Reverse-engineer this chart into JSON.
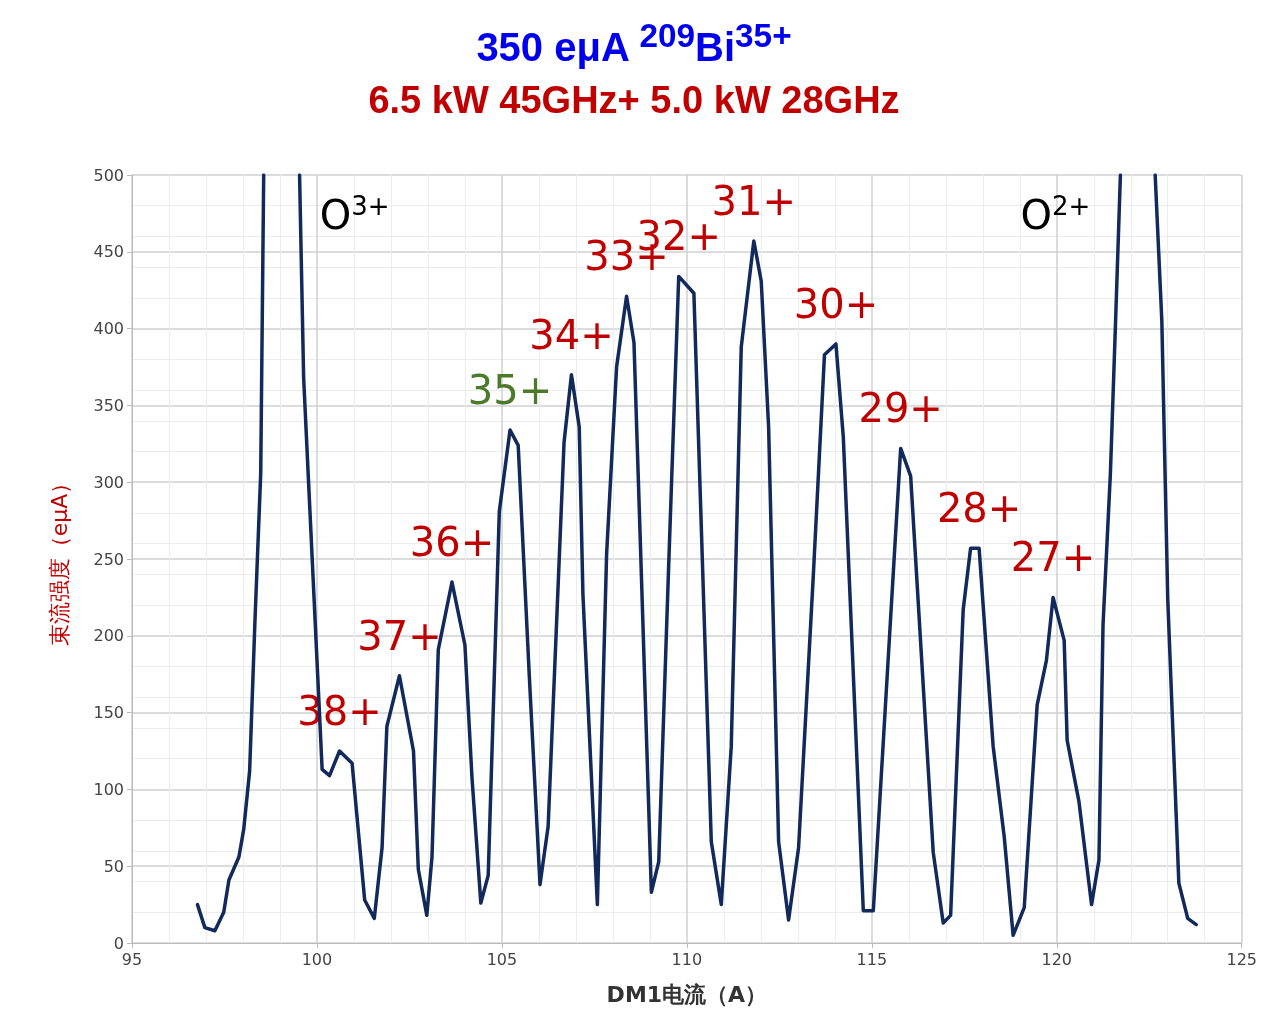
{
  "chart_data": {
    "type": "line",
    "title": "350 eμA $^{209}$Bi$^{35+}$",
    "subtitle": "6.5 kW 45GHz+ 5.0 kW 28GHz",
    "xlabel": "DM1电流（A）",
    "ylabel": "束流强度（eμA）",
    "x": [
      96.77,
      96.97,
      97.24,
      97.48,
      97.62,
      97.89,
      98.02,
      98.18,
      98.32,
      98.48,
      98.56,
      99.0,
      99.53,
      99.64,
      100.14,
      100.34,
      100.61,
      100.95,
      101.29,
      101.55,
      101.76,
      101.89,
      102.23,
      102.61,
      102.74,
      102.97,
      103.11,
      103.28,
      103.65,
      104.0,
      104.19,
      104.43,
      104.63,
      104.93,
      105.22,
      105.44,
      105.74,
      106.03,
      106.25,
      106.68,
      106.88,
      107.09,
      107.19,
      107.58,
      107.83,
      108.1,
      108.37,
      108.57,
      108.77,
      109.04,
      109.24,
      109.51,
      109.78,
      110.19,
      110.66,
      110.93,
      111.2,
      111.47,
      111.81,
      112.01,
      112.21,
      112.48,
      112.75,
      113.02,
      113.42,
      113.72,
      114.03,
      114.23,
      114.77,
      115.04,
      115.45,
      115.78,
      116.05,
      116.66,
      116.93,
      117.13,
      117.47,
      117.67,
      117.9,
      118.28,
      118.58,
      118.82,
      119.12,
      119.47,
      119.72,
      119.9,
      120.2,
      120.28,
      120.6,
      120.94,
      121.14,
      121.25,
      121.45,
      121.59,
      121.72,
      122.2,
      122.66,
      122.84,
      123.0,
      123.3,
      123.54,
      123.77
    ],
    "series": [
      {
        "color": "#12295c",
        "values": [
          25,
          10,
          8,
          20,
          41,
          56,
          74,
          112,
          207,
          306,
          500,
          null,
          500,
          368,
          113,
          109,
          125,
          117,
          28,
          16,
          62,
          141,
          174,
          125,
          48,
          18,
          56,
          191,
          235,
          194,
          108,
          26,
          44,
          281,
          334,
          324,
          174,
          38,
          76,
          326,
          370,
          336,
          227,
          25,
          253,
          375,
          421,
          391,
          240,
          33,
          53,
          247,
          434,
          423,
          66,
          25,
          128,
          388,
          457,
          431,
          336,
          66,
          15,
          62,
          240,
          383,
          390,
          329,
          21,
          21,
          188,
          322,
          304,
          59,
          13,
          18,
          217,
          257,
          257,
          128,
          69,
          5,
          23,
          155,
          184,
          225,
          197,
          132,
          92,
          25,
          54,
          207,
          306,
          405,
          500,
          null,
          500,
          405,
          224,
          39,
          16,
          12
        ]
      }
    ],
    "xlim": [
      95,
      125
    ],
    "xticks": [
      95,
      100,
      105,
      110,
      115,
      120,
      125
    ],
    "ylim": [
      0,
      500
    ],
    "yticks": [
      0,
      50,
      100,
      150,
      200,
      250,
      300,
      350,
      400,
      450,
      500
    ],
    "grid": true,
    "marker": "none",
    "line_style": "solid",
    "annotations": [
      {
        "text": "O$^{3+}$",
        "x": 99.53,
        "y": 500
      },
      {
        "text": "O$^{2+}$",
        "x": 121.72,
        "y": 500
      },
      {
        "text": "38+",
        "x": 100.61,
        "y": 125
      },
      {
        "text": "37+",
        "x": 102.23,
        "y": 174
      },
      {
        "text": "36+",
        "x": 103.65,
        "y": 235
      },
      {
        "text": "35+",
        "x": 105.22,
        "y": 334
      },
      {
        "text": "34+",
        "x": 106.88,
        "y": 370
      },
      {
        "text": "33+",
        "x": 108.37,
        "y": 421
      },
      {
        "text": "32+",
        "x": 109.78,
        "y": 434
      },
      {
        "text": "31+",
        "x": 111.81,
        "y": 457
      },
      {
        "text": "30+",
        "x": 114.03,
        "y": 390
      },
      {
        "text": "29+",
        "x": 115.78,
        "y": 322
      },
      {
        "text": "28+",
        "x": 117.9,
        "y": 257
      },
      {
        "text": "27+",
        "x": 119.9,
        "y": 225
      }
    ]
  }
}
